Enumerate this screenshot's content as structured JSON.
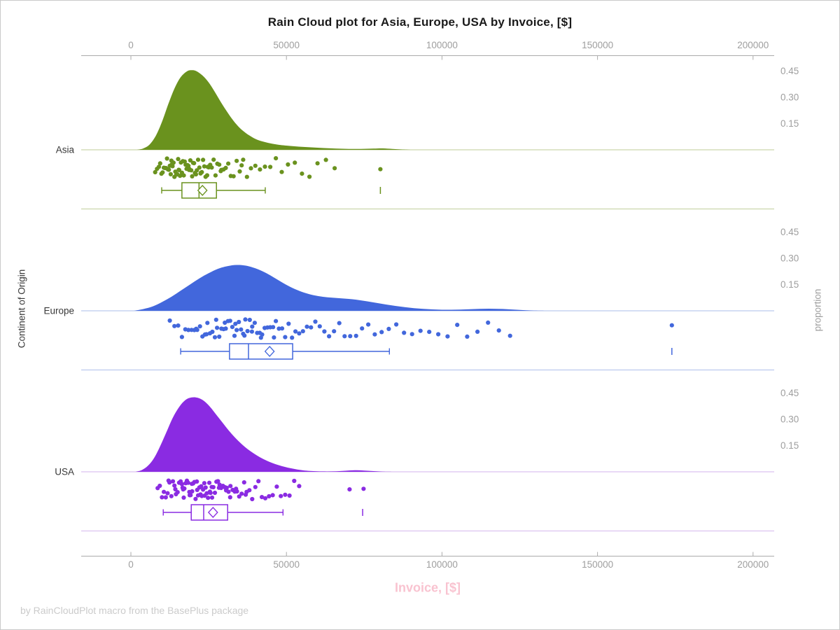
{
  "chart_data": {
    "type": "raincloud",
    "title": "Rain Cloud plot for Asia, Europe, USA by Invoice, [$]",
    "footnote": "by RainCloudPlot macro from the BasePlus package",
    "xlabel": "Invoice, [$]",
    "ylabel_left": "Continent of Origin",
    "ylabel_right": "proportion",
    "x_ticks": [
      0,
      50000,
      100000,
      150000,
      200000
    ],
    "x_tick_labels": [
      "0",
      "50000",
      "100000",
      "150000",
      "200000"
    ],
    "xlim": [
      -16000,
      207000
    ],
    "proportion_ticks": [
      0.45,
      0.3,
      0.15
    ],
    "grid": false,
    "legend": "none",
    "groups": [
      {
        "label": "Asia",
        "color": "#6A921E",
        "light_color": "#CCD7AC",
        "density": [
          [
            2000,
            0
          ],
          [
            4000,
            0.008
          ],
          [
            6000,
            0.03
          ],
          [
            8000,
            0.08
          ],
          [
            10000,
            0.16
          ],
          [
            12000,
            0.26
          ],
          [
            14000,
            0.35
          ],
          [
            16000,
            0.415
          ],
          [
            18000,
            0.448
          ],
          [
            19500,
            0.455
          ],
          [
            21000,
            0.45
          ],
          [
            23000,
            0.425
          ],
          [
            25000,
            0.385
          ],
          [
            27000,
            0.33
          ],
          [
            29000,
            0.27
          ],
          [
            31000,
            0.215
          ],
          [
            33000,
            0.165
          ],
          [
            35000,
            0.125
          ],
          [
            37000,
            0.095
          ],
          [
            39000,
            0.072
          ],
          [
            41000,
            0.055
          ],
          [
            44000,
            0.04
          ],
          [
            47000,
            0.03
          ],
          [
            50000,
            0.024
          ],
          [
            54000,
            0.018
          ],
          [
            58000,
            0.014
          ],
          [
            62000,
            0.01
          ],
          [
            66000,
            0.007
          ],
          [
            70000,
            0.005
          ],
          [
            74000,
            0.005
          ],
          [
            78000,
            0.007
          ],
          [
            81000,
            0.008
          ],
          [
            84000,
            0.005
          ],
          [
            87000,
            0.002
          ],
          [
            90000,
            0
          ]
        ],
        "box": {
          "low": 9900,
          "q1": 16400,
          "median": 21900,
          "mean": 23000,
          "q3": 27500,
          "high": 43200,
          "outliers": [
            80200
          ]
        },
        "rain": [
          7800,
          8400,
          9000,
          9400,
          9800,
          10200,
          10600,
          11000,
          11300,
          11600,
          11900,
          12200,
          12500,
          12800,
          13100,
          13400,
          13700,
          14000,
          14300,
          14600,
          14900,
          15200,
          15500,
          15800,
          16100,
          16400,
          16700,
          17000,
          17300,
          17600,
          17900,
          18200,
          18500,
          18800,
          19100,
          19400,
          19700,
          20000,
          20300,
          20600,
          20900,
          21200,
          21600,
          22000,
          22400,
          22800,
          23200,
          23600,
          24000,
          24500,
          25000,
          25500,
          26000,
          26600,
          27200,
          27800,
          28400,
          29100,
          29800,
          30500,
          31300,
          32100,
          33000,
          34000,
          35000,
          36100,
          37300,
          38600,
          40000,
          41500,
          43100,
          44800,
          46600,
          48500,
          50500,
          52700,
          55000,
          57400,
          60000,
          62700,
          65500,
          35600,
          28900,
          22500,
          18700,
          15400,
          13000,
          24700,
          80200
        ]
      },
      {
        "label": "Europe",
        "color": "#4267DC",
        "light_color": "#BCC9EE",
        "density": [
          [
            1000,
            0
          ],
          [
            4000,
            0.01
          ],
          [
            7000,
            0.025
          ],
          [
            10000,
            0.05
          ],
          [
            13000,
            0.08
          ],
          [
            16000,
            0.115
          ],
          [
            19000,
            0.15
          ],
          [
            22000,
            0.185
          ],
          [
            25000,
            0.215
          ],
          [
            28000,
            0.24
          ],
          [
            31000,
            0.255
          ],
          [
            34000,
            0.262
          ],
          [
            37000,
            0.258
          ],
          [
            40000,
            0.243
          ],
          [
            43000,
            0.22
          ],
          [
            46000,
            0.19
          ],
          [
            49000,
            0.158
          ],
          [
            52000,
            0.13
          ],
          [
            55000,
            0.108
          ],
          [
            58000,
            0.092
          ],
          [
            61000,
            0.082
          ],
          [
            64000,
            0.076
          ],
          [
            67000,
            0.072
          ],
          [
            70000,
            0.068
          ],
          [
            73000,
            0.062
          ],
          [
            76000,
            0.054
          ],
          [
            79000,
            0.045
          ],
          [
            82000,
            0.036
          ],
          [
            85000,
            0.028
          ],
          [
            88000,
            0.021
          ],
          [
            91000,
            0.015
          ],
          [
            94000,
            0.011
          ],
          [
            97000,
            0.008
          ],
          [
            100000,
            0.006
          ],
          [
            103000,
            0.006
          ],
          [
            106000,
            0.007
          ],
          [
            109000,
            0.009
          ],
          [
            112000,
            0.011
          ],
          [
            115000,
            0.012
          ],
          [
            118000,
            0.011
          ],
          [
            121000,
            0.009
          ],
          [
            124000,
            0.006
          ],
          [
            127000,
            0.003
          ],
          [
            130000,
            0.001
          ],
          [
            133000,
            0
          ]
        ],
        "box": {
          "low": 16000,
          "q1": 31700,
          "median": 37800,
          "mean": 44600,
          "q3": 52000,
          "high": 83100,
          "outliers": [
            173900
          ]
        },
        "rain": [
          12500,
          14000,
          15200,
          16400,
          17500,
          18500,
          19500,
          20400,
          21300,
          22200,
          23000,
          23800,
          24600,
          25400,
          26200,
          27000,
          27700,
          28400,
          29100,
          29800,
          30500,
          31200,
          31900,
          32600,
          33300,
          34000,
          34700,
          35400,
          36100,
          36800,
          37500,
          38200,
          39000,
          39800,
          40600,
          41400,
          42200,
          43000,
          43900,
          44800,
          45700,
          46600,
          47600,
          48600,
          49600,
          50700,
          51800,
          52900,
          54100,
          55300,
          56600,
          57900,
          59300,
          60700,
          62200,
          63700,
          65300,
          67000,
          68700,
          70500,
          72400,
          74300,
          76300,
          78400,
          80600,
          82900,
          85300,
          87800,
          90400,
          93100,
          95900,
          98800,
          101800,
          104900,
          108100,
          111400,
          114800,
          118300,
          121900,
          33600,
          36500,
          30200,
          27400,
          41800,
          24300,
          21000,
          38900,
          46000,
          173900
        ]
      },
      {
        "label": "USA",
        "color": "#8A2BE2",
        "light_color": "#DCC2F0",
        "density": [
          [
            1500,
            0
          ],
          [
            3500,
            0.01
          ],
          [
            5500,
            0.035
          ],
          [
            7500,
            0.08
          ],
          [
            9500,
            0.15
          ],
          [
            11500,
            0.23
          ],
          [
            13500,
            0.31
          ],
          [
            15500,
            0.37
          ],
          [
            17500,
            0.41
          ],
          [
            19500,
            0.425
          ],
          [
            21500,
            0.423
          ],
          [
            23500,
            0.405
          ],
          [
            25500,
            0.37
          ],
          [
            27500,
            0.325
          ],
          [
            29500,
            0.28
          ],
          [
            31500,
            0.235
          ],
          [
            33500,
            0.195
          ],
          [
            35500,
            0.16
          ],
          [
            37500,
            0.13
          ],
          [
            39500,
            0.105
          ],
          [
            41500,
            0.083
          ],
          [
            43500,
            0.065
          ],
          [
            45500,
            0.05
          ],
          [
            47500,
            0.038
          ],
          [
            49500,
            0.028
          ],
          [
            51500,
            0.02
          ],
          [
            53500,
            0.013
          ],
          [
            55500,
            0.008
          ],
          [
            57500,
            0.005
          ],
          [
            60000,
            0.003
          ],
          [
            63000,
            0.002
          ],
          [
            66000,
            0.003
          ],
          [
            69000,
            0.006
          ],
          [
            72000,
            0.009
          ],
          [
            75000,
            0.007
          ],
          [
            78000,
            0.004
          ],
          [
            81000,
            0.001
          ],
          [
            84000,
            0
          ]
        ],
        "box": {
          "low": 10400,
          "q1": 19400,
          "median": 23400,
          "mean": 26400,
          "q3": 31100,
          "high": 48900,
          "outliers": [
            74500
          ]
        },
        "rain": [
          8600,
          9300,
          10000,
          10600,
          11200,
          11800,
          12400,
          13000,
          13500,
          14000,
          14500,
          15000,
          15500,
          16000,
          16400,
          16800,
          17200,
          17600,
          18000,
          18400,
          18800,
          19200,
          19600,
          20000,
          20400,
          20800,
          21200,
          21600,
          22000,
          22400,
          22800,
          23200,
          23600,
          24000,
          24400,
          24800,
          25200,
          25600,
          26000,
          26500,
          27000,
          27500,
          28000,
          28500,
          29000,
          29600,
          30200,
          30800,
          31400,
          32000,
          32700,
          33400,
          34100,
          34800,
          35600,
          36400,
          37200,
          38100,
          39000,
          40000,
          41000,
          42100,
          43200,
          44400,
          45600,
          46900,
          48200,
          49600,
          51000,
          52500,
          54100,
          21300,
          23700,
          26100,
          28300,
          30600,
          18900,
          16600,
          14300,
          12100,
          33800,
          36900,
          25400,
          22600,
          19700,
          17000,
          70300,
          74800,
          27700,
          31900
        ]
      }
    ]
  }
}
